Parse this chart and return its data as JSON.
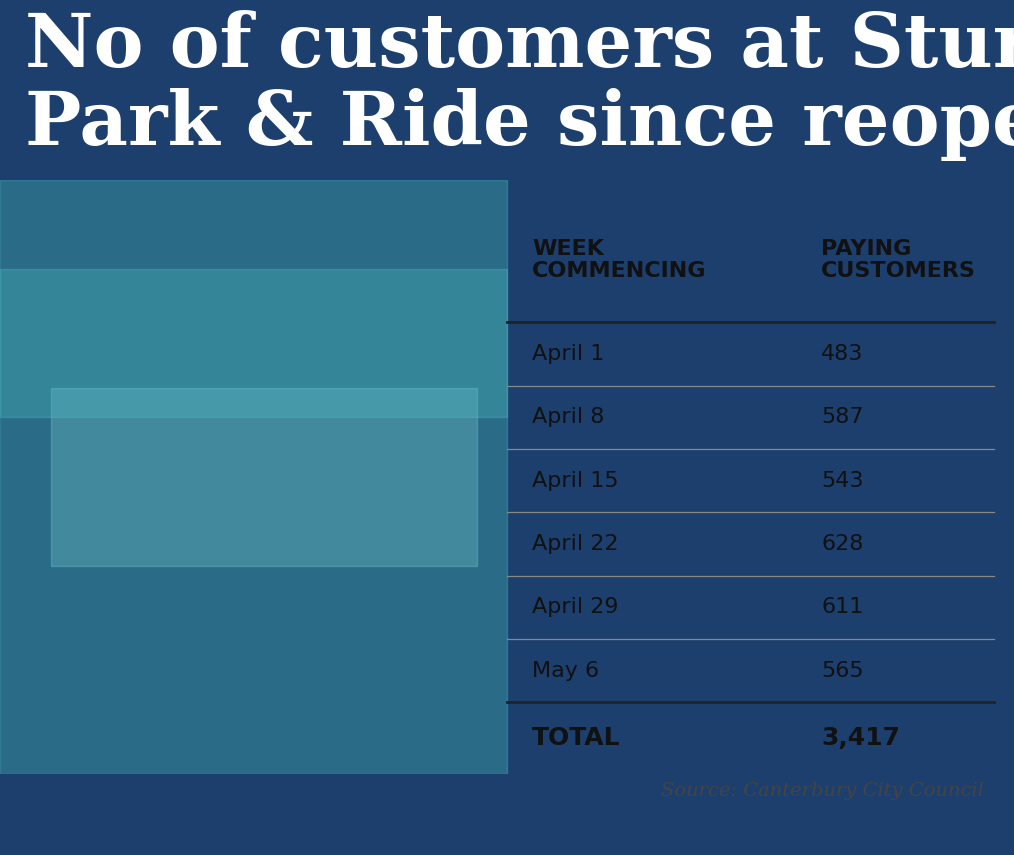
{
  "title_line1": "No of customers at Sturry",
  "title_line2": "Park & Ride since reopening",
  "title_bg_color": "#1d3f6e",
  "title_text_color": "#ffffff",
  "header_col1": "WEEK\nCOMMENCING",
  "header_col2": "PAYING\nCUSTOMERS",
  "weeks": [
    "April 1",
    "April 8",
    "April 15",
    "April 22",
    "April 29",
    "May 6"
  ],
  "customers": [
    "483",
    "587",
    "543",
    "628",
    "611",
    "565"
  ],
  "total_label": "TOTAL",
  "total_value": "3,417",
  "source_text": "Source: Canterbury City Council",
  "table_bg_color": "#ffffff",
  "table_text_color": "#111111",
  "header_text_color": "#111111",
  "total_text_color": "#111111",
  "source_strip_color": "#e8e8e8",
  "bottom_bar_color": "#1d3f6e",
  "teal_bg_color": "#5ac8c8",
  "teal_dark": "#3aacac",
  "line_heavy": "#222222",
  "line_light": "#888888"
}
